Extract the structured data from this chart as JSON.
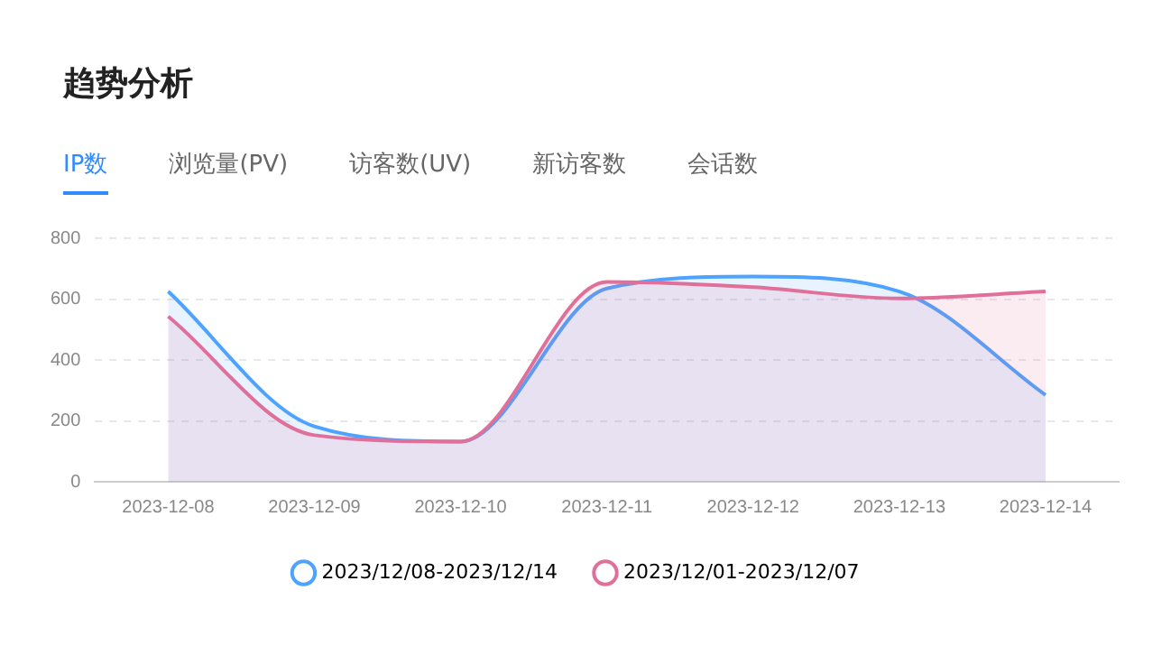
{
  "chart_data": {
    "type": "area",
    "title": "趋势分析",
    "annotations": [
      "IP数",
      "浏览量(PV)",
      "访客数(UV)",
      "新访客数",
      "会话数"
    ],
    "categories": [
      "2023-12-08",
      "2023-12-09",
      "2023-12-10",
      "2023-12-11",
      "2023-12-12",
      "2023-12-13",
      "2023-12-14"
    ],
    "series": [
      {
        "name": "2023/12/08-2023/12/14",
        "color": "#4da3ff",
        "values": [
          625,
          182,
          132,
          635,
          674,
          625,
          285
        ]
      },
      {
        "name": "2023/12/01-2023/12/07",
        "color": "#e0709a",
        "values": [
          543,
          153,
          132,
          656,
          639,
          602,
          625
        ]
      }
    ],
    "ylim": [
      0,
      800
    ],
    "yticks": [
      0,
      200,
      400,
      600,
      800
    ],
    "grid": "y",
    "legend": "bottom",
    "marker": "none",
    "line_style": "solid"
  }
}
